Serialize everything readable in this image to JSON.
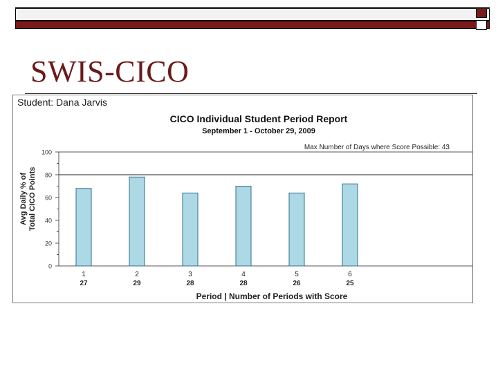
{
  "slide": {
    "title": "SWIS-CICO"
  },
  "report": {
    "student": "Student: Dana Jarvis",
    "title": "CICO Individual Student Period Report",
    "date_range": "September 1 - October 29, 2009",
    "max_days_note": "Max Number of Days where Score Possible: 43"
  },
  "chart_data": {
    "type": "bar",
    "title": "CICO Individual Student Period Report",
    "subtitle": "September 1 - October 29, 2009",
    "categories": [
      "1",
      "2",
      "3",
      "4",
      "5",
      "6"
    ],
    "counts": [
      "27",
      "29",
      "28",
      "28",
      "26",
      "25"
    ],
    "values": [
      68,
      78,
      64,
      70,
      64,
      72
    ],
    "xlabel": "Period | Number of Periods with Score",
    "ylabel": [
      "Avg Daily % of",
      "Total CICO Points"
    ],
    "ylim": [
      0,
      100
    ],
    "yticks": [
      "0",
      "20",
      "40",
      "60",
      "80",
      "100"
    ],
    "reference_line": 80,
    "bar_color": "#add8e6",
    "bar_outline": "#2f6f8a",
    "grid": false
  }
}
